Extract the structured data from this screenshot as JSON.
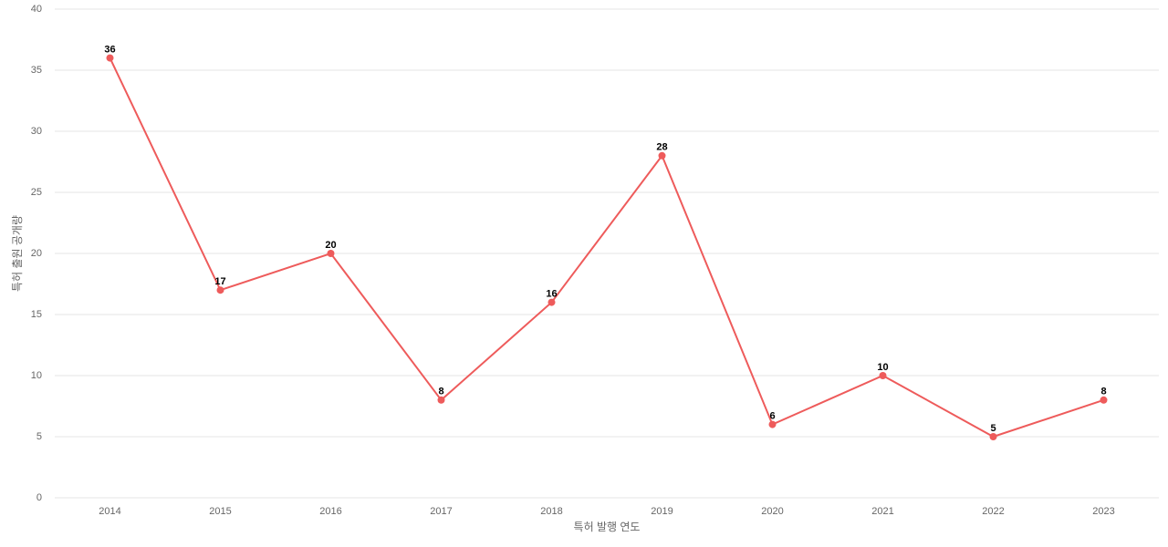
{
  "chart_data": {
    "type": "line",
    "x_label": "특허 발행 연도",
    "y_label": "특허 출원 공개량",
    "categories": [
      "2014",
      "2015",
      "2016",
      "2017",
      "2018",
      "2019",
      "2020",
      "2021",
      "2022",
      "2023"
    ],
    "values": [
      36,
      17,
      20,
      8,
      16,
      28,
      6,
      10,
      5,
      8
    ],
    "color": "#ee5b5b",
    "ylim": [
      0,
      40
    ],
    "yticks": [
      0,
      5,
      10,
      15,
      20,
      25,
      30,
      35,
      40
    ],
    "grid": true
  }
}
